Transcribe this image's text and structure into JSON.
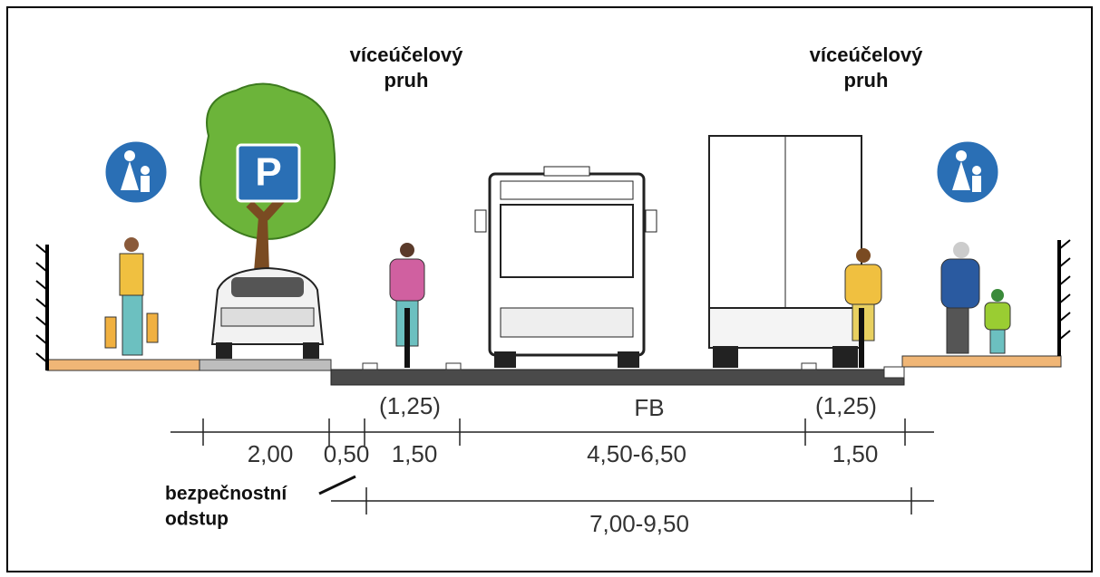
{
  "lane_labels": [
    {
      "lines": [
        "víceúčelový",
        "pruh"
      ]
    },
    {
      "lines": [
        "víceúčelový",
        "pruh"
      ]
    }
  ],
  "parking_sign": "P",
  "dimensions": {
    "top": [
      "(1,25)",
      "FB",
      "(1,25)"
    ],
    "row1": [
      "2,00",
      "0,50",
      "1,50",
      "4,50-6,50",
      "1,50"
    ],
    "note": [
      "bezpečnostní",
      "odstup"
    ],
    "row2": "7,00-9,50"
  }
}
